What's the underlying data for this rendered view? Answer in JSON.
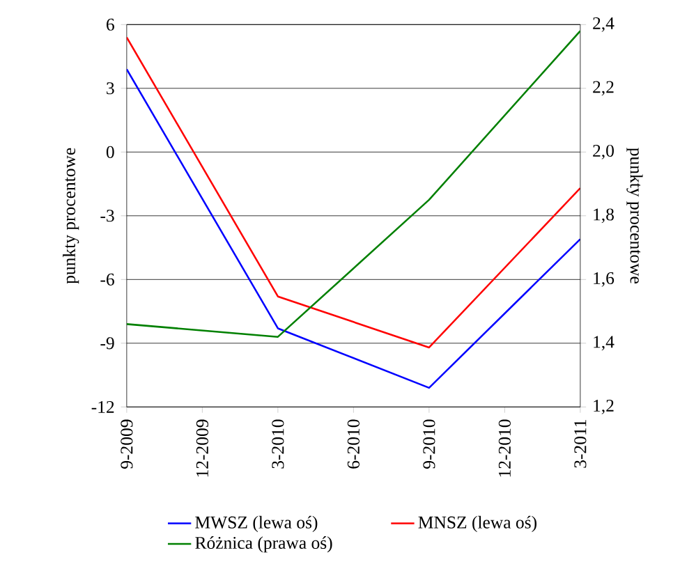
{
  "chart_data": {
    "type": "line",
    "ylabel": "punkty procentowe",
    "y2label": "punkty procentowe",
    "x": [
      "2009-09",
      "2010-03",
      "2010-09",
      "2011-03"
    ],
    "series": [
      {
        "name": "MWSZ  (lewa oś)",
        "color": "#0000ff",
        "values": [
          3.9,
          -8.3,
          -11.1,
          -4.1
        ]
      },
      {
        "name": "MNSZ  (lewa oś)",
        "color": "#ff0000",
        "values": [
          5.4,
          -6.8,
          -9.2,
          -1.7
        ]
      },
      {
        "name": "Różnica  (prawa oś)",
        "color": "#008000",
        "axis": "y2",
        "values": [
          1.46,
          1.42,
          1.85,
          2.38
        ]
      }
    ],
    "xlim": [
      "2009-09",
      "2011-03"
    ],
    "xticks": [
      {
        "value": "2009-09",
        "label": "9-2009"
      },
      {
        "value": "2009-12",
        "label": "12-2009"
      },
      {
        "value": "2010-03",
        "label": "3-2010"
      },
      {
        "value": "2010-06",
        "label": "6-2010"
      },
      {
        "value": "2010-09",
        "label": "9-2010"
      },
      {
        "value": "2010-12",
        "label": "12-2010"
      },
      {
        "value": "2011-03",
        "label": "3-2011"
      }
    ],
    "ylim": [
      -12,
      6
    ],
    "yticks": [
      -12,
      -9,
      -6,
      -3,
      0,
      3,
      6
    ],
    "y2lim": [
      1.2,
      2.4
    ],
    "y2ticks": [
      {
        "value": 1.2,
        "label": "1,2"
      },
      {
        "value": 1.4,
        "label": "1,4"
      },
      {
        "value": 1.6,
        "label": "1,6"
      },
      {
        "value": 1.8,
        "label": "1,8"
      },
      {
        "value": 2.0,
        "label": "2,0"
      },
      {
        "value": 2.2,
        "label": "2,2"
      },
      {
        "value": 2.4,
        "label": "2,4"
      }
    ],
    "grid": "y",
    "legend": "bottom",
    "marker": "none",
    "line_style": "solid"
  }
}
